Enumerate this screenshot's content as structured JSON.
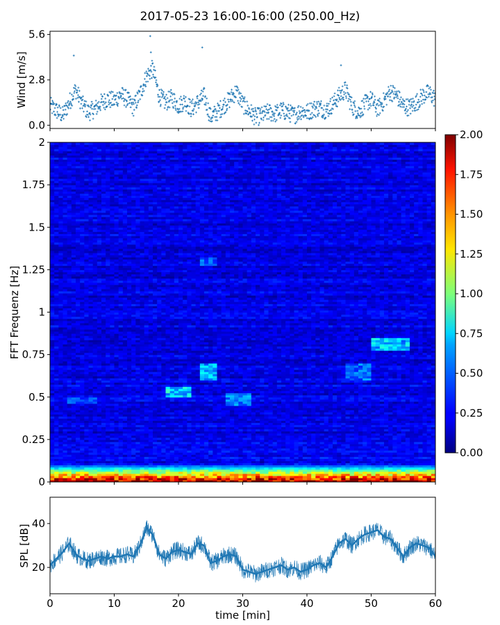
{
  "title": "2017-05-23 16:00-16:00 (250.00_Hz)",
  "chart_data": [
    {
      "type": "scatter",
      "panel": "wind",
      "ylabel": "Wind [m/s]",
      "ylim": [
        -0.2,
        5.8
      ],
      "yticks": [
        0.0,
        2.8,
        5.6
      ],
      "ytick_labels": [
        "0.0",
        "2.8",
        "5.6"
      ],
      "xlim": [
        0,
        60
      ],
      "color": "#1f77b4",
      "trend": {
        "x": [
          0,
          1,
          2,
          3,
          4,
          5,
          6,
          7,
          8,
          9,
          10,
          11,
          12,
          13,
          14,
          15,
          16,
          17,
          18,
          19,
          20,
          21,
          22,
          23,
          24,
          25,
          26,
          27,
          28,
          29,
          30,
          31,
          32,
          33,
          34,
          35,
          36,
          37,
          38,
          39,
          40,
          41,
          42,
          43,
          44,
          45,
          46,
          47,
          48,
          49,
          50,
          51,
          52,
          53,
          54,
          55,
          56,
          57,
          58,
          59,
          60
        ],
        "y": [
          1.2,
          0.9,
          0.6,
          1.4,
          2.2,
          1.3,
          0.8,
          1.0,
          1.4,
          1.6,
          1.5,
          1.9,
          1.6,
          1.1,
          1.9,
          3.0,
          3.5,
          1.8,
          1.4,
          1.7,
          1.2,
          1.5,
          1.0,
          1.4,
          1.8,
          0.5,
          0.8,
          1.2,
          1.6,
          2.1,
          1.3,
          0.9,
          0.5,
          0.6,
          0.8,
          0.7,
          0.9,
          0.8,
          0.6,
          0.9,
          0.8,
          1.0,
          1.1,
          0.9,
          1.3,
          1.8,
          2.2,
          1.2,
          0.8,
          1.3,
          1.6,
          1.0,
          1.5,
          2.1,
          1.8,
          1.2,
          1.1,
          1.4,
          1.8,
          2.0,
          1.6
        ]
      },
      "outliers": [
        {
          "x": 3.7,
          "y": 4.3
        },
        {
          "x": 15.6,
          "y": 5.5
        },
        {
          "x": 15.7,
          "y": 4.5
        },
        {
          "x": 23.7,
          "y": 4.8
        },
        {
          "x": 45.3,
          "y": 3.7
        }
      ]
    },
    {
      "type": "heatmap",
      "panel": "spectrogram",
      "ylabel": "FFT Frequenz [Hz]",
      "ylim": [
        0,
        2
      ],
      "yticks": [
        0,
        0.25,
        0.5,
        0.75,
        1,
        1.25,
        1.5,
        1.75,
        2
      ],
      "ytick_labels": [
        "0",
        "0.25",
        "0.5",
        "0.75",
        "1",
        "1.25",
        "1.5",
        "1.75",
        "2"
      ],
      "xlim": [
        0,
        60
      ],
      "colormap": "jet",
      "colorbar": {
        "range": [
          0.0,
          2.0
        ],
        "ticks": [
          "0.00",
          "0.25",
          "0.50",
          "0.75",
          "1.00",
          "1.25",
          "1.50",
          "1.75",
          "2.00"
        ]
      },
      "features": [
        {
          "label": "low frequency band",
          "f": [
            0,
            0.1
          ],
          "t": [
            0,
            60
          ],
          "level": 1.5
        },
        {
          "label": "hotspot",
          "f": [
            0.5,
            0.56
          ],
          "t": [
            18,
            22
          ],
          "level": 0.8
        },
        {
          "label": "hotspot",
          "f": [
            0.6,
            0.7
          ],
          "t": [
            23,
            26
          ],
          "level": 0.7
        },
        {
          "label": "hotspot",
          "f": [
            0.45,
            0.52
          ],
          "t": [
            27,
            31
          ],
          "level": 0.6
        },
        {
          "label": "hotspot",
          "f": [
            0.77,
            0.85
          ],
          "t": [
            50,
            56
          ],
          "level": 0.75
        },
        {
          "label": "hotspot",
          "f": [
            0.6,
            0.7
          ],
          "t": [
            46,
            50
          ],
          "level": 0.55
        },
        {
          "label": "hotspot",
          "f": [
            1.28,
            1.32
          ],
          "t": [
            23,
            26
          ],
          "level": 0.5
        },
        {
          "label": "hotspot",
          "f": [
            0.46,
            0.5
          ],
          "t": [
            3,
            7
          ],
          "level": 0.5
        }
      ]
    },
    {
      "type": "line",
      "panel": "spl",
      "ylabel": "SPL [dB]",
      "xlabel": "time [min]",
      "ylim": [
        8,
        52
      ],
      "yticks": [
        20,
        40
      ],
      "ytick_labels": [
        "20",
        "40"
      ],
      "xlim": [
        0,
        60
      ],
      "xticks": [
        0,
        10,
        20,
        30,
        40,
        50,
        60
      ],
      "xtick_labels": [
        "0",
        "10",
        "20",
        "30",
        "40",
        "50",
        "60"
      ],
      "color": "#1f77b4",
      "series": [
        {
          "x": [
            0,
            1,
            2,
            3,
            4,
            5,
            6,
            7,
            8,
            9,
            10,
            11,
            12,
            13,
            14,
            15,
            16,
            17,
            18,
            19,
            20,
            21,
            22,
            23,
            24,
            25,
            26,
            27,
            28,
            29,
            30,
            31,
            32,
            33,
            34,
            35,
            36,
            37,
            38,
            39,
            40,
            41,
            42,
            43,
            44,
            45,
            46,
            47,
            48,
            49,
            50,
            51,
            52,
            53,
            54,
            55,
            56,
            57,
            58,
            59,
            60
          ],
          "y": [
            21,
            24,
            27,
            31,
            26,
            24,
            23,
            24,
            25,
            24,
            25,
            25,
            26,
            25,
            30,
            38,
            35,
            26,
            24,
            27,
            28,
            27,
            26,
            31,
            30,
            22,
            23,
            25,
            26,
            25,
            19,
            18,
            17,
            18,
            19,
            20,
            21,
            19,
            20,
            18,
            19,
            21,
            22,
            20,
            25,
            31,
            33,
            30,
            33,
            35,
            36,
            37,
            34,
            33,
            29,
            25,
            29,
            31,
            30,
            29,
            25
          ]
        }
      ]
    }
  ]
}
